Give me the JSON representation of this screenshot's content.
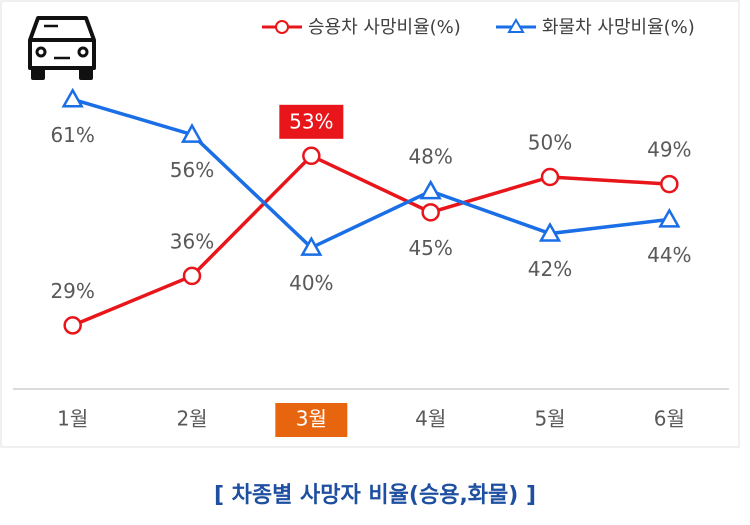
{
  "chart_data": {
    "type": "line",
    "caption": "[ 차종별 사망자 비율(승용,화물) ]",
    "categories": [
      "1월",
      "2월",
      "3월",
      "4월",
      "5월",
      "6월"
    ],
    "highlight_index": 2,
    "series": [
      {
        "name": "승용차 사망비율(%)",
        "color": "#e8151b",
        "marker": "circle",
        "values": [
          29,
          36,
          53,
          45,
          50,
          49
        ],
        "value_labels": [
          "29%",
          "36%",
          "53%",
          "45%",
          "50%",
          "49%"
        ]
      },
      {
        "name": "화물차 사망비율(%)",
        "color": "#1a6ee6",
        "marker": "triangle",
        "values": [
          61,
          56,
          40,
          48,
          42,
          44
        ],
        "value_labels": [
          "61%",
          "56%",
          "40%",
          "48%",
          "42%",
          "44%"
        ]
      }
    ],
    "ylim": [
      20,
      65
    ]
  }
}
